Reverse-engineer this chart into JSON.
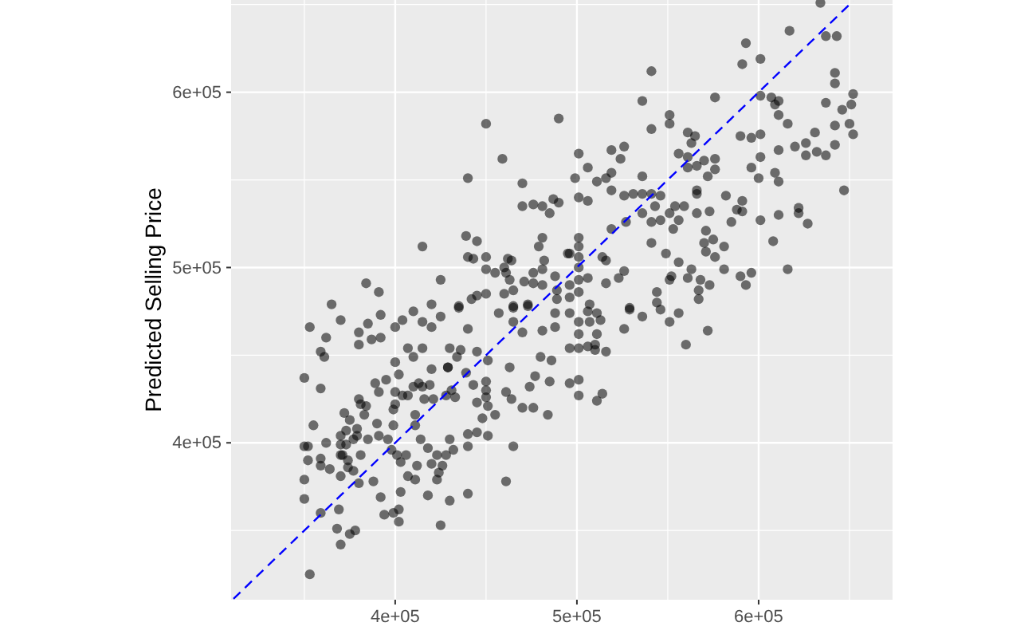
{
  "chart_data": {
    "type": "scatter",
    "ylabel": "Predicted Selling Price",
    "grid": true,
    "xlim": [
      309700,
      673700
    ],
    "ylim": [
      310500,
      652600
    ],
    "xticks": [
      {
        "value": 400000,
        "label": "4e+05"
      },
      {
        "value": 500000,
        "label": "5e+05"
      },
      {
        "value": 600000,
        "label": "6e+05"
      }
    ],
    "yticks": [
      {
        "value": 400000,
        "label": "4e+05"
      },
      {
        "value": 500000,
        "label": "5e+05"
      },
      {
        "value": 600000,
        "label": "6e+05"
      }
    ],
    "series": [
      {
        "color": "#000000",
        "marker": "circle",
        "x": [
          450000,
          490000,
          459000,
          440000,
          470000,
          487000,
          490000,
          470000,
          476000,
          481000,
          485000,
          439000,
          445000,
          415000,
          481000,
          479000,
          482000,
          440000,
          450000,
          443000,
          462000,
          464000,
          460000,
          450000,
          455000,
          461000,
          476000,
          481000,
          463000,
          471000,
          476000,
          481000,
          488000,
          495000,
          425000,
          384000,
          391000,
          365000,
          420000,
          435000,
          442000,
          445000,
          450000,
          460000,
          465000,
          473000,
          465000,
          489000,
          489000,
          634000,
          617000,
          637000,
          643000,
          593000,
          591000,
          601000,
          541000,
          642000,
          642000,
          652000,
          651000,
          646000,
          637000,
          650000,
          652000,
          642000,
          642000,
          631000,
          626000,
          620000,
          626000,
          632000,
          637000,
          647000,
          601000,
          607000,
          611000,
          609000,
          611000,
          616000,
          576000,
          536000,
          551000,
          551000,
          541000,
          561000,
          565000,
          563000,
          590000,
          596000,
          601000,
          611000,
          576000,
          576000,
          570000,
          566000,
          561000,
          556000,
          561000,
          601000,
          596000,
          600000,
          609000,
          611000,
          572000,
          501000,
          506000,
          519000,
          526000,
          524000,
          519000,
          516000,
          511000,
          499000,
          536000,
          501000,
          506000,
          519000,
          526000,
          531000,
          536000,
          541000,
          546000,
          543000,
          536000,
          541000,
          546000,
          551000,
          554000,
          559000,
          556000,
          553000,
          566000,
          566000,
          566000,
          573000,
          582000,
          588000,
          591000,
          591000,
          585000,
          601000,
          611000,
          622000,
          622000,
          627000,
          608000,
          616000,
          571000,
          575000,
          570000,
          571000,
          576000,
          581000,
          541000,
          549000,
          556000,
          563000,
          561000,
          552000,
          551000,
          581000,
          590000,
          596000,
          593000,
          568000,
          573000,
          567000,
          567000,
          544000,
          544000,
          529000,
          526000,
          523000,
          516000,
          519000,
          527000,
          514000,
          516000,
          501000,
          501000,
          496000,
          501000,
          501000,
          506000,
          501000,
          496000,
          501000,
          496000,
          507000,
          353000,
          370000,
          362000,
          359000,
          361000,
          350000,
          359000,
          380000,
          385000,
          380000,
          387000,
          392000,
          392000,
          400000,
          404000,
          410000,
          415000,
          420000,
          425000,
          435000,
          440000,
          457000,
          465000,
          473000,
          465000,
          470000,
          481000,
          488000,
          488000,
          480000,
          486000,
          485000,
          477000,
          474000,
          470000,
          476000,
          484000,
          463000,
          464000,
          461000,
          450000,
          450000,
          450000,
          445000,
          451000,
          455000,
          448000,
          451000,
          445000,
          440000,
          440000,
          465000,
          461000,
          445000,
          451000,
          436000,
          430000,
          434000,
          429000,
          439000,
          443000,
          431000,
          433000,
          428000,
          421000,
          416000,
          413000,
          415000,
          419000,
          420000,
          429000,
          410000,
          407000,
          415000,
          400000,
          402000,
          395000,
          389000,
          391000,
          380000,
          381000,
          384000,
          383000,
          400000,
          404000,
          407000,
          410000,
          400000,
          399000,
          411000,
          411000,
          399000,
          390000,
          379000,
          375000,
          372000,
          373000,
          370000,
          379000,
          385000,
          391000,
          396000,
          398000,
          401000,
          403000,
          406000,
          414000,
          418000,
          423000,
          428000,
          432000,
          430000,
          426000,
          420000,
          412000,
          407000,
          411000,
          423000,
          424000,
          418000,
          430000,
          440000,
          403000,
          402000,
          402000,
          394000,
          392000,
          388000,
          380000,
          377000,
          374000,
          370000,
          374000,
          370000,
          364000,
          359000,
          352000,
          359000,
          350000,
          350000,
          362000,
          352000,
          350000,
          355000,
          370000,
          371000,
          381000,
          373000,
          377000,
          369000,
          368000,
          370000,
          375000,
          378000,
          359000,
          353000,
          425000,
          399000,
          496000,
          506000,
          511000,
          513000,
          501000,
          507000,
          501000,
          511000,
          496000,
          501000,
          506000,
          510000,
          510000,
          516000,
          526000,
          529000,
          536000,
          546000,
          551000,
          556000,
          560000,
          572000,
          496000,
          501000,
          501000,
          514000,
          511000
        ],
        "values": [
          582000,
          585000,
          562000,
          551000,
          548000,
          539000,
          537000,
          535000,
          536000,
          535000,
          531000,
          518000,
          515000,
          512000,
          517000,
          512000,
          504000,
          506000,
          506000,
          505000,
          505000,
          504000,
          500000,
          499000,
          497000,
          497000,
          497000,
          499000,
          493000,
          492000,
          491000,
          490000,
          495000,
          508000,
          493000,
          491000,
          486000,
          479000,
          479000,
          478000,
          482000,
          484000,
          485000,
          485000,
          487000,
          479000,
          478000,
          487000,
          482000,
          651000,
          635000,
          632000,
          632000,
          628000,
          616000,
          619000,
          612000,
          611000,
          605000,
          599000,
          593000,
          590000,
          594000,
          582000,
          576000,
          581000,
          570000,
          577000,
          571000,
          569000,
          564000,
          566000,
          564000,
          544000,
          598000,
          597000,
          595000,
          593000,
          587000,
          582000,
          597000,
          595000,
          587000,
          582000,
          579000,
          577000,
          575000,
          571000,
          575000,
          574000,
          576000,
          567000,
          562000,
          556000,
          561000,
          558000,
          557000,
          565000,
          563000,
          563000,
          557000,
          551000,
          554000,
          549000,
          552000,
          565000,
          557000,
          567000,
          569000,
          562000,
          554000,
          551000,
          549000,
          551000,
          552000,
          540000,
          538000,
          544000,
          541000,
          542000,
          542000,
          542000,
          541000,
          535000,
          531000,
          526000,
          527000,
          531000,
          535000,
          535000,
          527000,
          522000,
          544000,
          542000,
          531000,
          532000,
          541000,
          533000,
          538000,
          532000,
          526000,
          527000,
          530000,
          534000,
          531000,
          525000,
          515000,
          499000,
          521000,
          516000,
          514000,
          509000,
          506000,
          512000,
          514000,
          508000,
          503000,
          499000,
          494000,
          495000,
          493000,
          499000,
          495000,
          497000,
          490000,
          493000,
          490000,
          487000,
          482000,
          486000,
          480000,
          477000,
          498000,
          494000,
          491000,
          522000,
          526000,
          506000,
          504000,
          517000,
          512000,
          508000,
          506000,
          500000,
          494000,
          493000,
          490000,
          486000,
          483000,
          479000,
          466000,
          470000,
          460000,
          452000,
          449000,
          437000,
          431000,
          463000,
          468000,
          456000,
          459000,
          473000,
          460000,
          466000,
          470000,
          475000,
          469000,
          466000,
          472000,
          477000,
          465000,
          474000,
          477000,
          478000,
          469000,
          463000,
          464000,
          474000,
          466000,
          449000,
          447000,
          435000,
          438000,
          432000,
          420000,
          420000,
          416000,
          443000,
          425000,
          429000,
          435000,
          430000,
          426000,
          423000,
          421000,
          416000,
          414000,
          404000,
          406000,
          405000,
          398000,
          398000,
          378000,
          452000,
          447000,
          453000,
          454000,
          449000,
          443000,
          440000,
          433000,
          430000,
          426000,
          427000,
          425000,
          425000,
          434000,
          432000,
          433000,
          442000,
          443000,
          449000,
          454000,
          454000,
          446000,
          439000,
          436000,
          434000,
          429000,
          425000,
          422000,
          421000,
          416000,
          429000,
          427000,
          427000,
          432000,
          422000,
          419000,
          416000,
          410000,
          410000,
          411000,
          408000,
          413000,
          417000,
          407000,
          404000,
          404000,
          402000,
          404000,
          402000,
          396000,
          393000,
          389000,
          393000,
          402000,
          397000,
          393000,
          393000,
          396000,
          402000,
          387000,
          388000,
          387000,
          381000,
          379000,
          379000,
          383000,
          370000,
          367000,
          371000,
          372000,
          362000,
          355000,
          359000,
          369000,
          378000,
          377000,
          384000,
          386000,
          381000,
          390000,
          393000,
          385000,
          387000,
          390000,
          391000,
          379000,
          368000,
          400000,
          398000,
          398000,
          410000,
          399000,
          393000,
          393000,
          399000,
          402000,
          362000,
          351000,
          342000,
          348000,
          350000,
          360000,
          325000,
          353000,
          360000,
          474000,
          475000,
          474000,
          470000,
          469000,
          469000,
          462000,
          462000,
          454000,
          454000,
          455000,
          456000,
          453000,
          452000,
          465000,
          476000,
          472000,
          476000,
          469000,
          474000,
          456000,
          464000,
          434000,
          436000,
          427000,
          428000,
          424000
        ]
      },
      {
        "type": "line",
        "color": "#0000ff",
        "line_style": "dashed",
        "marker": "none",
        "x": [
          311000,
          652000
        ],
        "values": [
          311000,
          652000
        ]
      }
    ]
  }
}
